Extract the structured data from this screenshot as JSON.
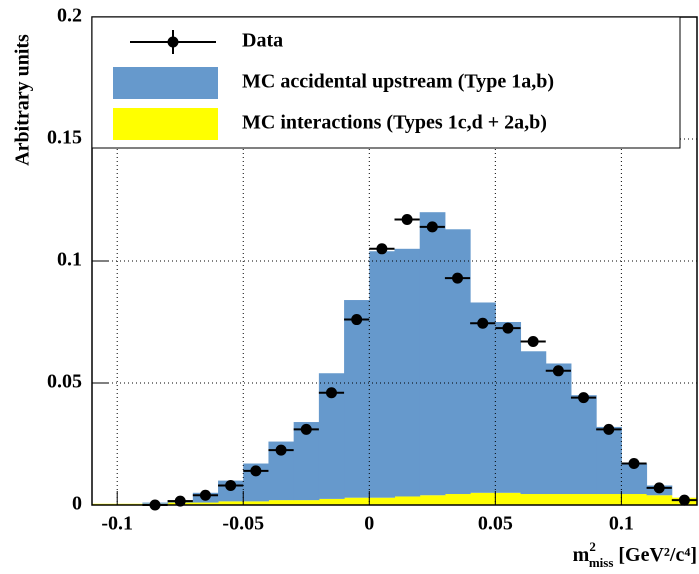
{
  "chart_data": {
    "type": "histogram",
    "y_label": "Arbitrary units",
    "x_label": {
      "base": "m",
      "sup": "2",
      "sub": "miss",
      "unit": "[GeV²/c⁴]"
    },
    "bins": [
      -0.11,
      -0.1,
      -0.09,
      -0.08,
      -0.07,
      -0.06,
      -0.05,
      -0.04,
      -0.03,
      -0.02,
      -0.01,
      0,
      0.01,
      0.02,
      0.03,
      0.04,
      0.05,
      0.06,
      0.07,
      0.08,
      0.09,
      0.1,
      0.11,
      0.12,
      0.13
    ],
    "series": [
      {
        "name": "Data",
        "style": "points",
        "color": "#000000",
        "values": [
          null,
          null,
          0,
          0.0016,
          0.004,
          0.008,
          0.014,
          0.0225,
          0.031,
          0.046,
          0.076,
          0.105,
          0.117,
          0.114,
          0.093,
          0.0745,
          0.0725,
          0.067,
          0.055,
          0.044,
          0.031,
          0.017,
          0.007,
          0.002
        ]
      },
      {
        "name": "MC accidental upstream (Type 1a,b)",
        "style": "stacked",
        "color": "#6699cc",
        "values": [
          0,
          0,
          0.0005,
          0.001,
          0.004,
          0.0085,
          0.0155,
          0.024,
          0.032,
          0.0515,
          0.081,
          0.101,
          0.1015,
          0.116,
          0.1085,
          0.078,
          0.07,
          0.0585,
          0.0535,
          0.0405,
          0.0275,
          0.0125,
          0.004,
          0
        ]
      },
      {
        "name": "MC interactions (Types 1c,d + 2a,b)",
        "style": "stacked",
        "color": "#ffff00",
        "values": [
          0.0005,
          0.0005,
          0.0005,
          0.001,
          0.001,
          0.0015,
          0.0015,
          0.002,
          0.002,
          0.0025,
          0.003,
          0.003,
          0.0035,
          0.004,
          0.0045,
          0.005,
          0.005,
          0.0045,
          0.0045,
          0.0045,
          0.0045,
          0.0045,
          0.004,
          0.003
        ]
      }
    ],
    "xlim": [
      -0.11,
      0.13
    ],
    "ylim": [
      0,
      0.2
    ],
    "xticks": [
      -0.1,
      -0.05,
      0,
      0.05,
      0.1
    ],
    "yticks": [
      0,
      0.05,
      0.1,
      0.15,
      0.2
    ],
    "grid": true
  }
}
